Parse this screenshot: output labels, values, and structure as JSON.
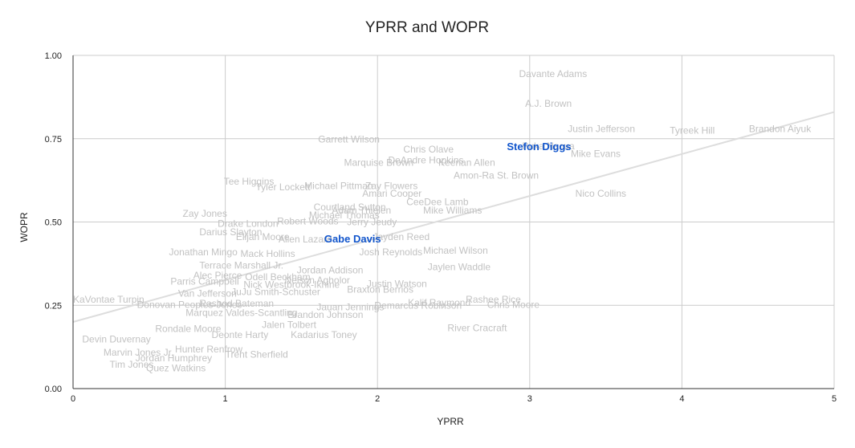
{
  "chart_data": {
    "type": "scatter",
    "title": "YPRR and WOPR",
    "xlabel": "YPRR",
    "ylabel": "WOPR",
    "xlim": [
      0,
      5
    ],
    "ylim": [
      0,
      1
    ],
    "x_ticks": [
      "0",
      "1",
      "2",
      "3",
      "4",
      "5"
    ],
    "y_ticks": [
      "0.00",
      "0.25",
      "0.50",
      "0.75",
      "1.00"
    ],
    "grid": true,
    "legend": "none",
    "colors": {
      "label": "#c2c2c2",
      "highlight": "#1155cc",
      "trendline": "#dddddd",
      "grid": "#cccccc"
    },
    "trendline": {
      "x": [
        0,
        5
      ],
      "y": [
        0.2,
        0.83
      ]
    },
    "points": [
      {
        "label": "Davante Adams",
        "x": 2.93,
        "y": 0.945
      },
      {
        "label": "A.J. Brown",
        "x": 2.97,
        "y": 0.855
      },
      {
        "label": "Justin Jefferson",
        "x": 3.25,
        "y": 0.78
      },
      {
        "label": "Tyreek Hill",
        "x": 3.92,
        "y": 0.775
      },
      {
        "label": "Brandon Aiyuk",
        "x": 4.44,
        "y": 0.78
      },
      {
        "label": "Stefon Diggs",
        "x": 2.85,
        "y": 0.725,
        "highlight": true
      },
      {
        "label": "Puka Nacua",
        "x": 2.95,
        "y": 0.728
      },
      {
        "label": "Mike Evans",
        "x": 3.27,
        "y": 0.705
      },
      {
        "label": "Nico Collins",
        "x": 3.3,
        "y": 0.585
      },
      {
        "label": "Garrett Wilson",
        "x": 1.61,
        "y": 0.748
      },
      {
        "label": "Chris Olave",
        "x": 2.17,
        "y": 0.718
      },
      {
        "label": "DeAndre Hopkins",
        "x": 2.07,
        "y": 0.685
      },
      {
        "label": "Marquise Brown",
        "x": 1.78,
        "y": 0.678
      },
      {
        "label": "Keenan Allen",
        "x": 2.4,
        "y": 0.678
      },
      {
        "label": "Amon-Ra St. Brown",
        "x": 2.5,
        "y": 0.64
      },
      {
        "label": "Tee Higgins",
        "x": 0.99,
        "y": 0.622
      },
      {
        "label": "Tyler Lockett",
        "x": 1.2,
        "y": 0.605
      },
      {
        "label": "Michael Pittman",
        "x": 1.52,
        "y": 0.608
      },
      {
        "label": "Zay Flowers",
        "x": 1.92,
        "y": 0.608
      },
      {
        "label": "Amari Cooper",
        "x": 1.9,
        "y": 0.585
      },
      {
        "label": "CeeDee Lamb",
        "x": 2.19,
        "y": 0.56
      },
      {
        "label": "Courtland Sutton",
        "x": 1.58,
        "y": 0.545
      },
      {
        "label": "Adam Thielen",
        "x": 1.7,
        "y": 0.535
      },
      {
        "label": "Mike Williams",
        "x": 2.3,
        "y": 0.535
      },
      {
        "label": "Zay Jones",
        "x": 0.72,
        "y": 0.525
      },
      {
        "label": "Michael Thomas",
        "x": 1.55,
        "y": 0.52
      },
      {
        "label": "Robert Woods",
        "x": 1.34,
        "y": 0.502
      },
      {
        "label": "Jerry Jeudy",
        "x": 1.8,
        "y": 0.5
      },
      {
        "label": "Drake London",
        "x": 0.95,
        "y": 0.495
      },
      {
        "label": "Darius Slayton",
        "x": 0.83,
        "y": 0.47
      },
      {
        "label": "Elijah Moore",
        "x": 1.07,
        "y": 0.455
      },
      {
        "label": "Allen Lazard",
        "x": 1.35,
        "y": 0.448
      },
      {
        "label": "Gabe Davis",
        "x": 1.65,
        "y": 0.448,
        "highlight": true
      },
      {
        "label": "Jayden Reed",
        "x": 1.97,
        "y": 0.455
      },
      {
        "label": "Michael Wilson",
        "x": 2.3,
        "y": 0.415
      },
      {
        "label": "Josh Reynolds",
        "x": 1.88,
        "y": 0.41
      },
      {
        "label": "Jonathan Mingo",
        "x": 0.63,
        "y": 0.41
      },
      {
        "label": "Mack Hollins",
        "x": 1.1,
        "y": 0.405
      },
      {
        "label": "Terrace Marshall Jr.",
        "x": 0.83,
        "y": 0.37
      },
      {
        "label": "Jaylen Waddle",
        "x": 2.33,
        "y": 0.365
      },
      {
        "label": "Jordan Addison",
        "x": 1.47,
        "y": 0.355
      },
      {
        "label": "Alec Pierce",
        "x": 0.79,
        "y": 0.34
      },
      {
        "label": "Odell Beckham",
        "x": 1.13,
        "y": 0.335
      },
      {
        "label": "Nelson Agholor",
        "x": 1.39,
        "y": 0.325
      },
      {
        "label": "Parris Campbell",
        "x": 0.64,
        "y": 0.322
      },
      {
        "label": "Nick Westbrook-Ikhine",
        "x": 1.12,
        "y": 0.312
      },
      {
        "label": "Justin Watson",
        "x": 1.93,
        "y": 0.315
      },
      {
        "label": "Braxton Berrios",
        "x": 1.8,
        "y": 0.298
      },
      {
        "label": "Van Jefferson",
        "x": 0.69,
        "y": 0.285
      },
      {
        "label": "JuJu Smith-Schuster",
        "x": 1.04,
        "y": 0.29
      },
      {
        "label": "Rashee Rice",
        "x": 2.58,
        "y": 0.268
      },
      {
        "label": "Kalif Raymond",
        "x": 2.2,
        "y": 0.258
      },
      {
        "label": "Chris Moore",
        "x": 2.72,
        "y": 0.252
      },
      {
        "label": "KaVontae Turpin",
        "x": 0,
        "y": 0.268
      },
      {
        "label": "Donovan Peoples-Jones",
        "x": 0.42,
        "y": 0.252
      },
      {
        "label": "Rashod Bateman",
        "x": 0.83,
        "y": 0.255
      },
      {
        "label": "Jauan Jennings",
        "x": 1.6,
        "y": 0.245
      },
      {
        "label": "Demarcus Robinson",
        "x": 1.98,
        "y": 0.25
      },
      {
        "label": "Marquez Valdes-Scantling",
        "x": 0.74,
        "y": 0.228
      },
      {
        "label": "Brandon Johnson",
        "x": 1.41,
        "y": 0.222
      },
      {
        "label": "Jalen Tolbert",
        "x": 1.24,
        "y": 0.192
      },
      {
        "label": "Rondale Moore",
        "x": 0.54,
        "y": 0.18
      },
      {
        "label": "Deonte Harty",
        "x": 0.91,
        "y": 0.162
      },
      {
        "label": "Kadarius Toney",
        "x": 1.43,
        "y": 0.162
      },
      {
        "label": "Devin Duvernay",
        "x": 0.06,
        "y": 0.148
      },
      {
        "label": "River Cracraft",
        "x": 2.46,
        "y": 0.182
      },
      {
        "label": "Hunter Renfrow",
        "x": 0.67,
        "y": 0.118
      },
      {
        "label": "Trent Sherfield",
        "x": 1,
        "y": 0.102
      },
      {
        "label": "Marvin Jones Jr.",
        "x": 0.2,
        "y": 0.108
      },
      {
        "label": "Jordan Humphrey",
        "x": 0.41,
        "y": 0.092
      },
      {
        "label": "Tim Jones",
        "x": 0.24,
        "y": 0.072
      },
      {
        "label": "Quez Watkins",
        "x": 0.48,
        "y": 0.062
      }
    ]
  }
}
